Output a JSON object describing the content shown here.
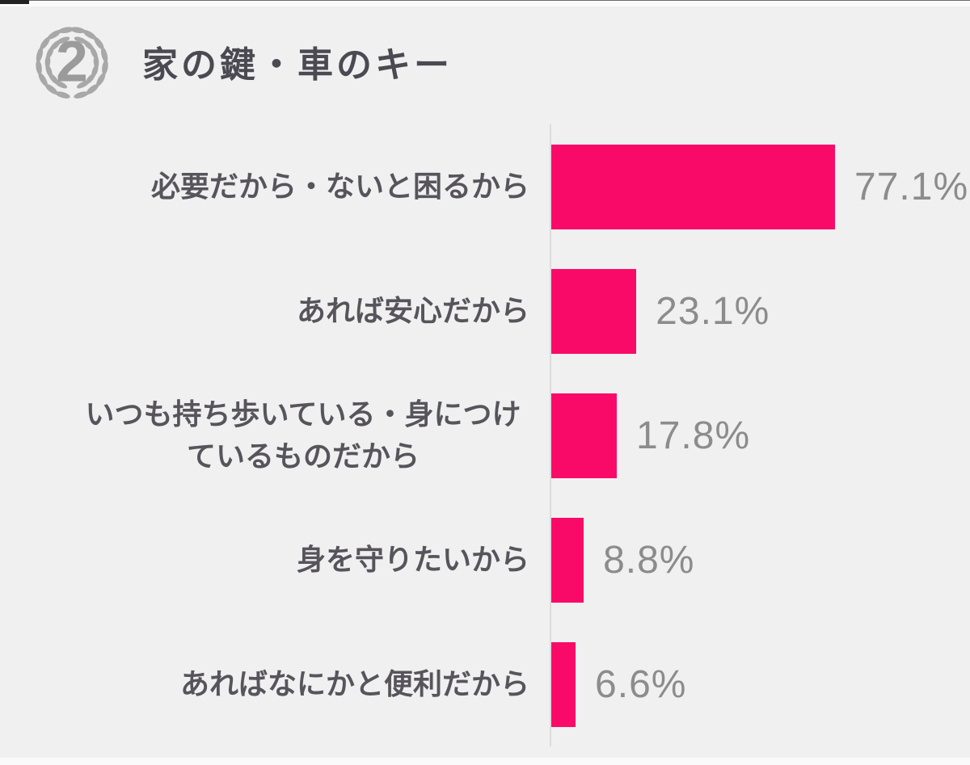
{
  "page": {
    "background_color": "#F0F0F0",
    "outer_background_color": "#FAFAFA"
  },
  "header": {
    "rank_number": "2",
    "rank_icon": "laurel-wreath-icon",
    "title": "家の鍵・車のキー"
  },
  "chart_data": {
    "type": "bar",
    "orientation": "horizontal",
    "title": "家の鍵・車のキー",
    "categories": [
      "必要だから・ないと困るから",
      "あれば安心だから",
      "いつも持ち歩いている・身につけているものだから",
      "身を守りたいから",
      "あればなにかと便利だから"
    ],
    "values": [
      77.1,
      23.1,
      17.8,
      8.8,
      6.6
    ],
    "value_labels": [
      "77.1%",
      "23.1%",
      "17.8%",
      "8.8%",
      "6.6%"
    ],
    "xlim": [
      0,
      100
    ],
    "grid": false,
    "legend": false,
    "bar_color": "#FA0A68",
    "value_label_color": "#8C8C8C",
    "category_label_color": "#57545B",
    "title_color": "#4B4A52",
    "axis_line_color": "#DCDCDC"
  }
}
